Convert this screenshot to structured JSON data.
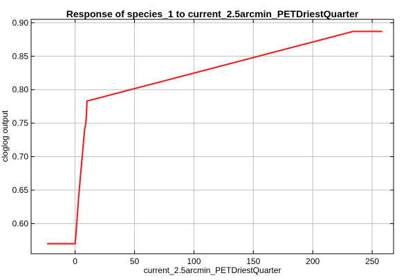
{
  "chart_data": {
    "type": "line",
    "title": "Response of species_1 to current_2.5arcmin_PETDriestQuarter",
    "xlabel": "current_2.5arcmin_PETDriestQuarter",
    "ylabel": "cloglog output",
    "xlim": [
      -37,
      268
    ],
    "ylim": [
      0.555,
      0.905
    ],
    "x_ticks": [
      0,
      50,
      100,
      150,
      200,
      250
    ],
    "y_ticks": [
      0.6,
      0.65,
      0.7,
      0.75,
      0.8,
      0.85,
      0.9
    ],
    "x_tick_labels": [
      "0",
      "50",
      "100",
      "150",
      "200",
      "250"
    ],
    "y_tick_labels": [
      "0.60",
      "0.65",
      "0.70",
      "0.75",
      "0.80",
      "0.85",
      "0.90"
    ],
    "grid": true,
    "series": [
      {
        "color": "#ee2222",
        "x": [
          -23,
          0,
          1,
          3,
          6,
          8,
          9,
          9.5,
          10,
          234,
          258
        ],
        "y": [
          0.57,
          0.57,
          0.59,
          0.64,
          0.7,
          0.74,
          0.75,
          0.76,
          0.783,
          0.887,
          0.887
        ]
      }
    ]
  }
}
